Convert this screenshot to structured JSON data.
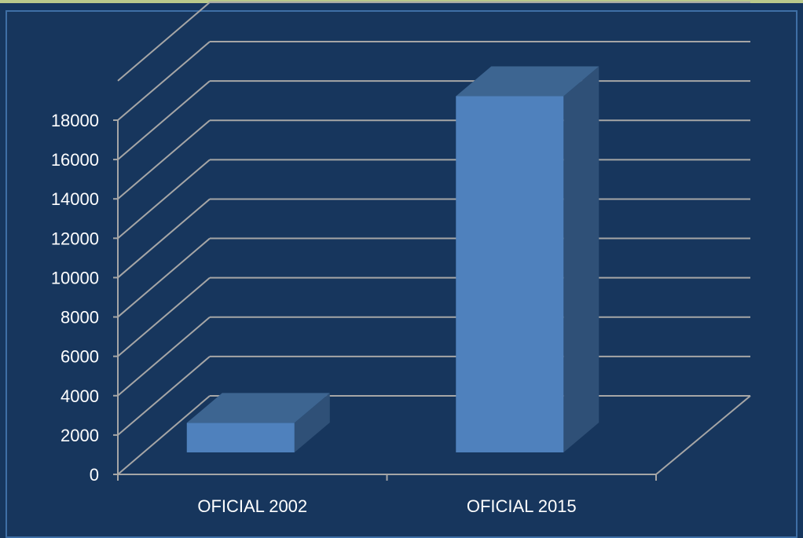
{
  "chart_data": {
    "type": "bar",
    "style": "3d-column",
    "categories": [
      "OFICIAL 2002",
      "OFICIAL 2015"
    ],
    "values": [
      1500,
      18100
    ],
    "title": "",
    "xlabel": "",
    "ylabel": "",
    "ylim": [
      0,
      20000
    ],
    "yticks": [
      0,
      2000,
      4000,
      6000,
      8000,
      10000,
      12000,
      14000,
      16000,
      18000
    ],
    "grid": true,
    "legend": "none",
    "colors": {
      "background": "#17365d",
      "bar_front": "#4f81bd",
      "bar_top": "#3d6591",
      "bar_side": "#2f5077",
      "grid": "#a6a6a6",
      "text": "#ffffff"
    }
  }
}
